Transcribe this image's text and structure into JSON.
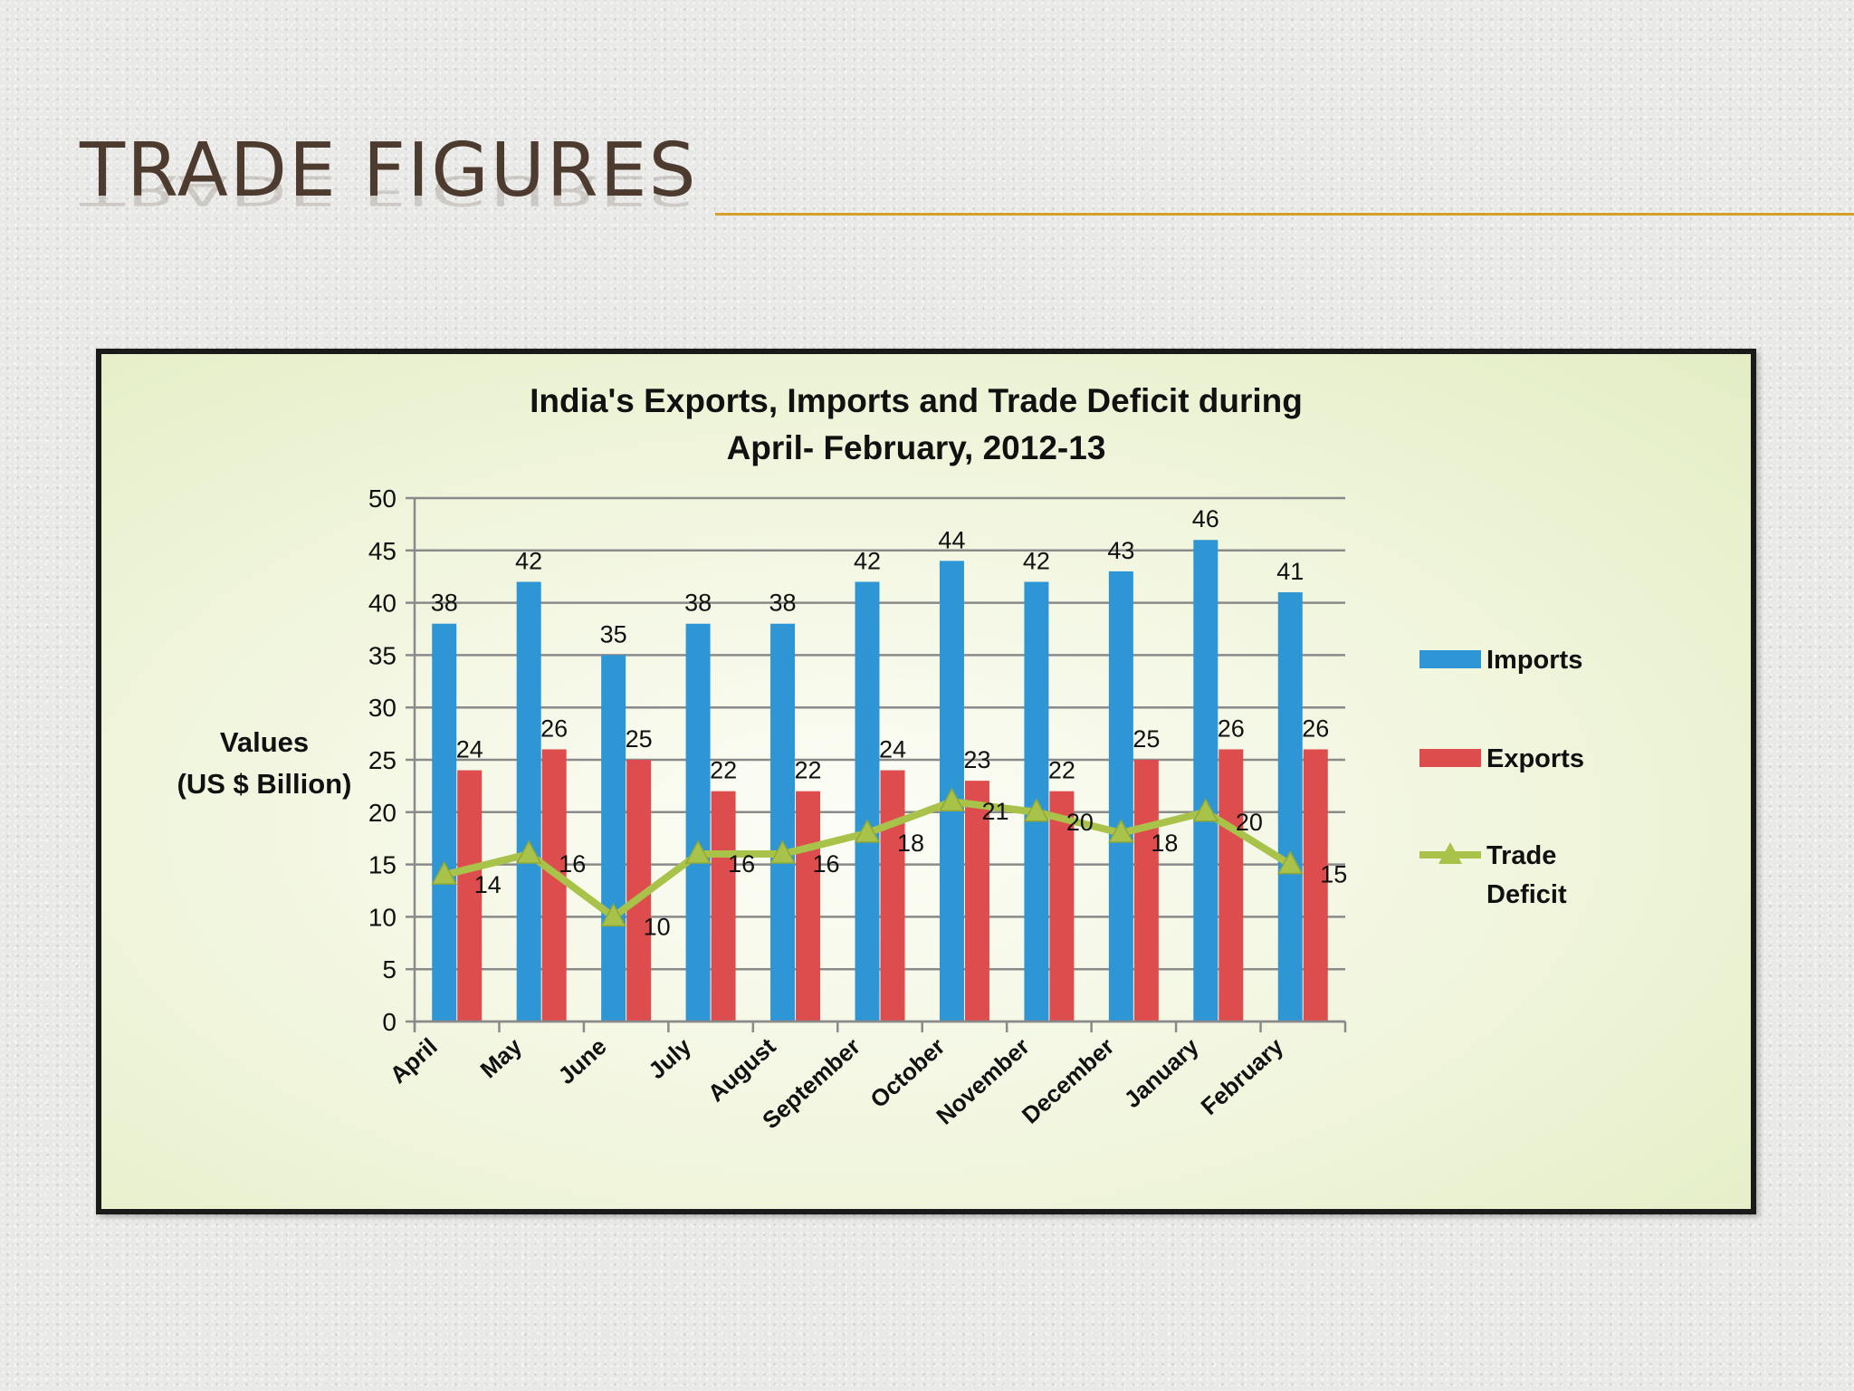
{
  "slide": {
    "title": "TRADE FIGURES"
  },
  "colors": {
    "imports": "#2e96d4",
    "exports": "#de4d4d",
    "deficit": "#a8c24a",
    "title_rule": "#d4a02a",
    "title_text": "#4d3b30"
  },
  "chart_data": {
    "type": "bar",
    "title_line1": "India's Exports, Imports and Trade Deficit during",
    "title_line2": "April- February, 2012-13",
    "ylabel_line1": "Values",
    "ylabel_line2": "(US $ Billion)",
    "ylim": [
      0,
      50
    ],
    "yticks": [
      0,
      5,
      10,
      15,
      20,
      25,
      30,
      35,
      40,
      45,
      50
    ],
    "grid": true,
    "legend_position": "right",
    "categories": [
      "April",
      "May",
      "June",
      "July",
      "August",
      "September",
      "October",
      "November",
      "December",
      "January",
      "February"
    ],
    "series": [
      {
        "name": "Imports",
        "type": "bar",
        "values": [
          38,
          42,
          35,
          38,
          38,
          42,
          44,
          42,
          43,
          46,
          41
        ]
      },
      {
        "name": "Exports",
        "type": "bar",
        "values": [
          24,
          26,
          25,
          22,
          22,
          24,
          23,
          22,
          25,
          26,
          26
        ]
      },
      {
        "name": "Trade Deficit",
        "type": "line",
        "marker": "triangle",
        "values": [
          14,
          16,
          10,
          16,
          16,
          18,
          21,
          20,
          18,
          20,
          15
        ]
      }
    ]
  }
}
